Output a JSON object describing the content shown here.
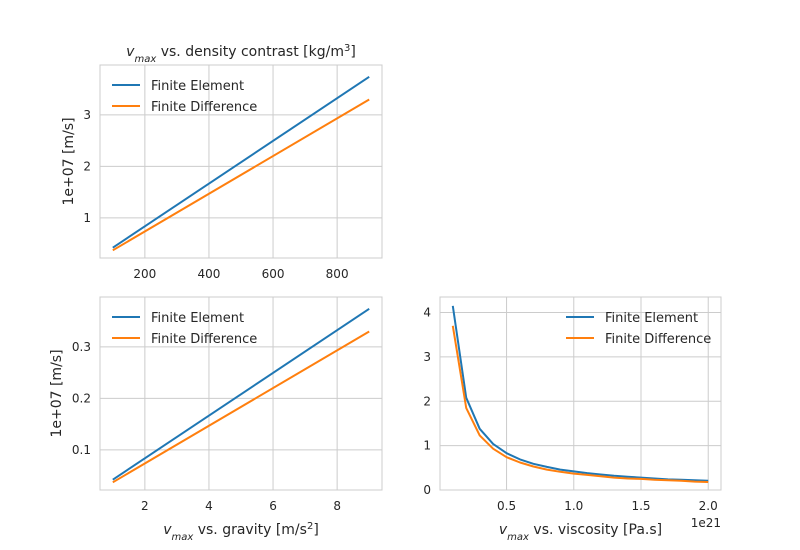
{
  "colors": {
    "finite_element": "#1f77b4",
    "finite_difference": "#ff7f0e",
    "grid": "#cccccc",
    "frame": "#cccccc"
  },
  "chart_data": [
    {
      "id": "density",
      "type": "line",
      "title": {
        "main": "v",
        "sub": "max",
        "rest": " vs. density contrast [kg/m",
        "sup": "3",
        "end": "]"
      },
      "xlabel": null,
      "ylabel": "1e+07 [m/s]",
      "offset_text": "",
      "xlim": [
        60,
        940
      ],
      "ylim": [
        0.22,
        3.97
      ],
      "xticks": [
        200,
        400,
        600,
        800
      ],
      "xtick_labels": [
        "200",
        "400",
        "600",
        "800"
      ],
      "yticks": [
        1,
        2,
        3
      ],
      "ytick_labels": [
        "1",
        "2",
        "3"
      ],
      "grid": true,
      "legend_position": "top-left",
      "series": [
        {
          "name": "Finite Element",
          "color_key": "finite_element",
          "x": [
            100,
            900
          ],
          "y": [
            0.42,
            3.74
          ]
        },
        {
          "name": "Finite Difference",
          "color_key": "finite_difference",
          "x": [
            100,
            900
          ],
          "y": [
            0.37,
            3.3
          ]
        }
      ]
    },
    {
      "id": "gravity",
      "type": "line",
      "title": null,
      "xlabel": {
        "main": "v",
        "sub": "max",
        "rest": " vs. gravity [m/s",
        "sup": "2",
        "end": "]"
      },
      "ylabel": "1e+07 [m/s]",
      "offset_text": "",
      "xlim": [
        0.6,
        9.4
      ],
      "ylim": [
        0.022,
        0.397
      ],
      "xticks": [
        2,
        4,
        6,
        8
      ],
      "xtick_labels": [
        "2",
        "4",
        "6",
        "8"
      ],
      "yticks": [
        0.1,
        0.2,
        0.3
      ],
      "ytick_labels": [
        "0.1",
        "0.2",
        "0.3"
      ],
      "grid": true,
      "legend_position": "top-left",
      "series": [
        {
          "name": "Finite Element",
          "color_key": "finite_element",
          "x": [
            1,
            9
          ],
          "y": [
            0.042,
            0.374
          ]
        },
        {
          "name": "Finite Difference",
          "color_key": "finite_difference",
          "x": [
            1,
            9
          ],
          "y": [
            0.037,
            0.33
          ]
        }
      ]
    },
    {
      "id": "viscosity",
      "type": "line",
      "title": null,
      "xlabel": {
        "main": "v",
        "sub": "max",
        "rest": " vs. viscosity [Pa.s]",
        "sup": "",
        "end": ""
      },
      "ylabel": "",
      "offset_text": "1e21",
      "xlim": [
        0.005,
        2.095
      ],
      "ylim": [
        0,
        4.35
      ],
      "xticks": [
        0.5,
        1.0,
        1.5,
        2.0
      ],
      "xtick_labels": [
        "0.5",
        "1.0",
        "1.5",
        "2.0"
      ],
      "yticks": [
        0,
        1,
        2,
        3,
        4
      ],
      "ytick_labels": [
        "0",
        "1",
        "2",
        "3",
        "4"
      ],
      "grid": true,
      "legend_position": "top-right",
      "series": [
        {
          "name": "Finite Element",
          "color_key": "finite_element",
          "x": [
            0.1,
            0.2,
            0.3,
            0.4,
            0.5,
            0.6,
            0.7,
            0.8,
            0.9,
            1.0,
            1.1,
            1.2,
            1.3,
            1.4,
            1.5,
            1.6,
            1.7,
            1.8,
            1.9,
            2.0
          ],
          "y": [
            4.15,
            2.08,
            1.38,
            1.04,
            0.83,
            0.69,
            0.59,
            0.52,
            0.46,
            0.42,
            0.38,
            0.35,
            0.32,
            0.3,
            0.28,
            0.26,
            0.24,
            0.23,
            0.22,
            0.21
          ]
        },
        {
          "name": "Finite Difference",
          "color_key": "finite_difference",
          "x": [
            0.1,
            0.2,
            0.3,
            0.4,
            0.5,
            0.6,
            0.7,
            0.8,
            0.9,
            1.0,
            1.1,
            1.2,
            1.3,
            1.4,
            1.5,
            1.6,
            1.7,
            1.8,
            1.9,
            2.0
          ],
          "y": [
            3.7,
            1.85,
            1.23,
            0.93,
            0.74,
            0.62,
            0.53,
            0.46,
            0.41,
            0.37,
            0.34,
            0.31,
            0.28,
            0.26,
            0.25,
            0.23,
            0.22,
            0.21,
            0.19,
            0.18
          ]
        }
      ]
    }
  ]
}
